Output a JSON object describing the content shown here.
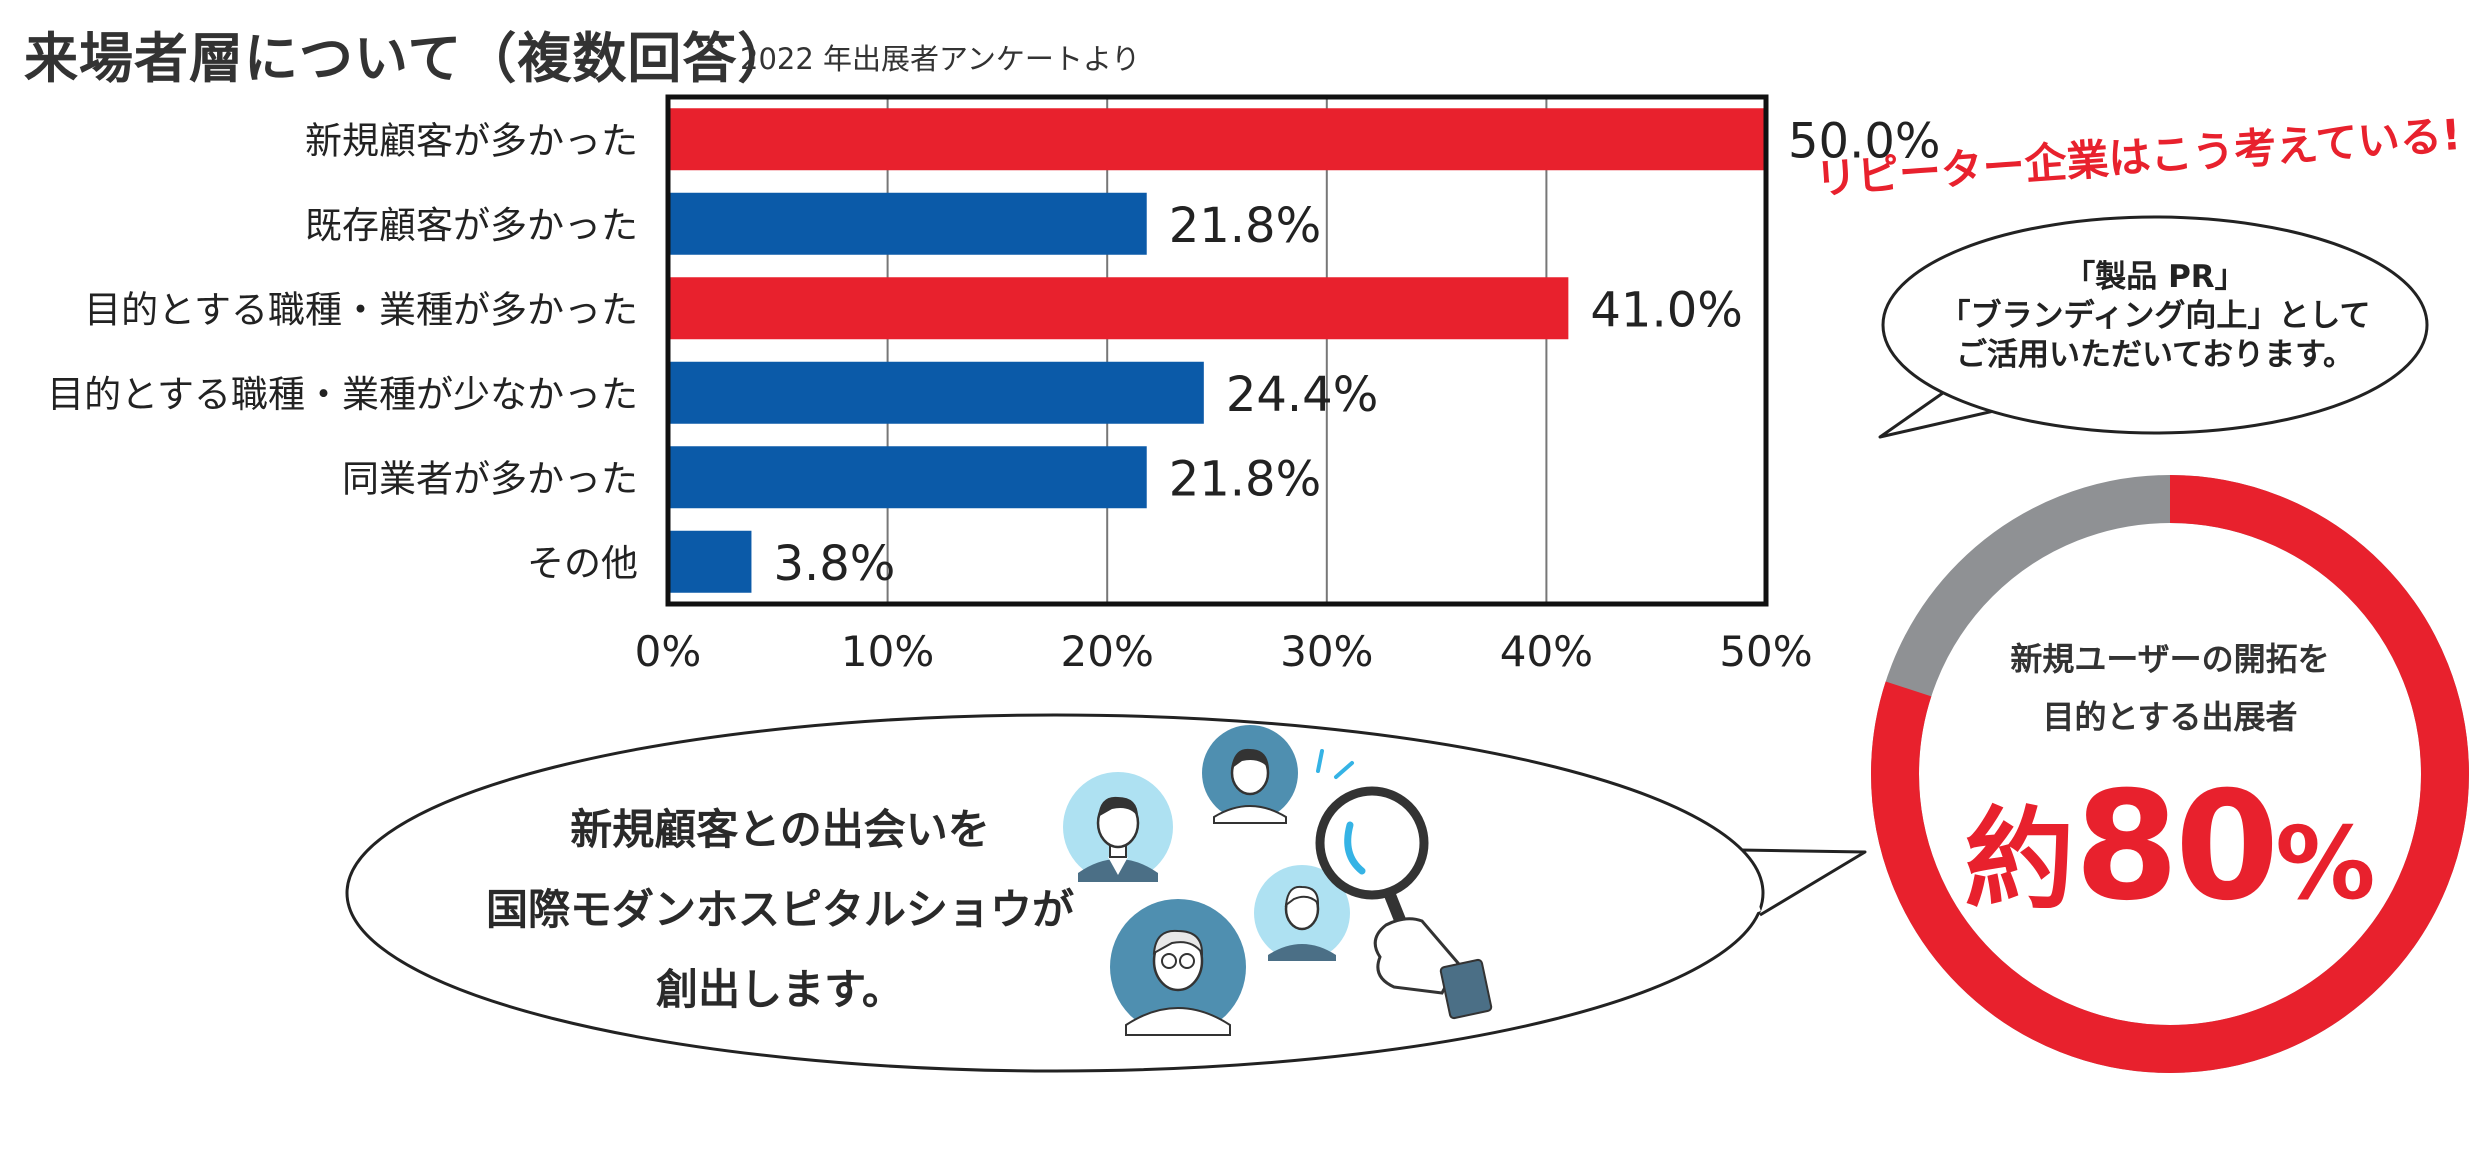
{
  "header": {
    "title": "来場者層について（複数回答）",
    "subtitle": "2022 年出展者アンケートより"
  },
  "chart_data": {
    "type": "bar",
    "orientation": "horizontal",
    "categories": [
      "新規顧客が多かった",
      "既存顧客が多かった",
      "目的とする職種・業種が多かった",
      "目的とする職種・業種が少なかった",
      "同業者が多かった",
      "その他"
    ],
    "values": [
      50.0,
      21.8,
      41.0,
      24.4,
      21.8,
      3.8
    ],
    "value_labels": [
      "50.0%",
      "21.8%",
      "41.0%",
      "24.4%",
      "21.8%",
      "3.8%"
    ],
    "bar_colors": [
      "#e8212d",
      "#0b5aa8",
      "#e8212d",
      "#0b5aa8",
      "#0b5aa8",
      "#0b5aa8"
    ],
    "xlim": [
      0,
      50
    ],
    "x_ticks": [
      "0%",
      "10%",
      "20%",
      "30%",
      "40%",
      "50%"
    ],
    "grid": true
  },
  "side": {
    "heading": "リピーター企業はこう考えている!",
    "bubble_lines": [
      "「製品 PR」",
      "「ブランディング向上」として",
      "ご活用いただいております。"
    ]
  },
  "donut": {
    "label_lines": [
      "新規ユーザーの開拓を",
      "目的とする出展者"
    ],
    "prefix": "約",
    "value_text": "80",
    "percent_sign": "%",
    "share": 0.8,
    "colors": {
      "main": "#e8212d",
      "rest": "#8f9194"
    }
  },
  "message": {
    "lines": [
      "新規顧客との出会いを",
      "国際モダンホスピタルショウが",
      "創出します。"
    ]
  },
  "illustration": {
    "icons": [
      "person-avatar-icon",
      "magnifier-icon",
      "hand-icon"
    ]
  }
}
